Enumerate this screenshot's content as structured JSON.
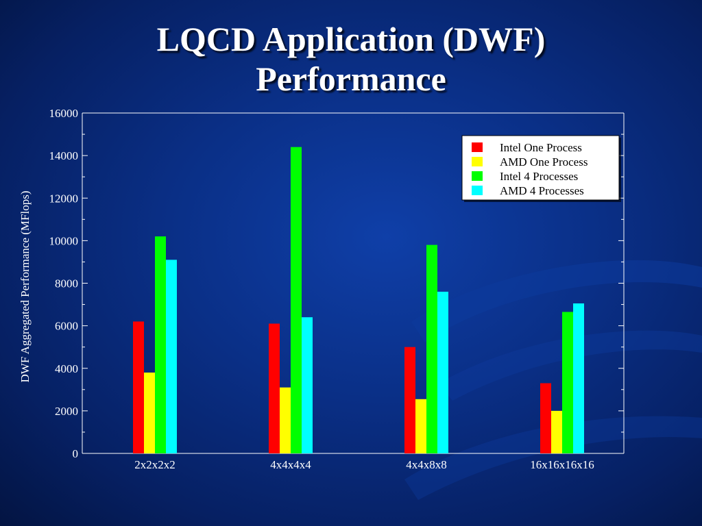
{
  "slide": {
    "title_line1": "LQCD Application (DWF)",
    "title_line2": "Performance"
  },
  "chart_data": {
    "type": "bar",
    "title": "",
    "xlabel": "",
    "ylabel": "DWF Aggregated Performance (MFlops)",
    "ylim": [
      0,
      16000
    ],
    "yticks": [
      0,
      2000,
      4000,
      6000,
      8000,
      10000,
      12000,
      14000,
      16000
    ],
    "categories": [
      "2x2x2x2",
      "4x4x4x4",
      "4x4x8x8",
      "16x16x16x16"
    ],
    "series": [
      {
        "name": "Intel One Process",
        "color": "#ff0000",
        "values": [
          6200,
          6100,
          5000,
          3300
        ]
      },
      {
        "name": "AMD One Process",
        "color": "#ffff00",
        "values": [
          3800,
          3100,
          2550,
          2000
        ]
      },
      {
        "name": "Intel 4 Processes",
        "color": "#00ff00",
        "values": [
          10200,
          14400,
          9800,
          6650
        ]
      },
      {
        "name": "AMD 4 Processes",
        "color": "#00ffff",
        "values": [
          9100,
          6400,
          7600,
          7050
        ]
      }
    ],
    "grid": false,
    "legend_position": "top-right",
    "colors": {
      "axis": "#ffffff",
      "legend_background": "#ffffff",
      "legend_border": "#000000"
    }
  }
}
